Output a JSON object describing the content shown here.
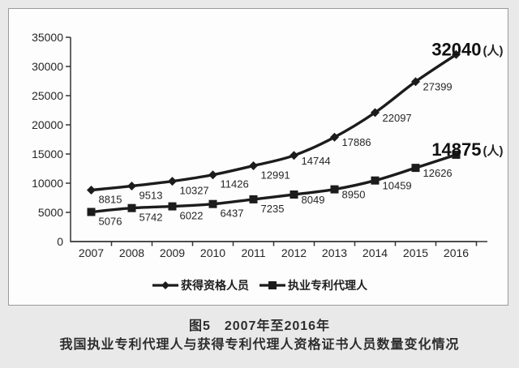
{
  "figure": {
    "caption_line1": "图5　2007年至2016年",
    "caption_line2": "我国执业专利代理人与获得专利代理人资格证书人员数量变化情况"
  },
  "chart_data": {
    "type": "line",
    "title": "",
    "xlabel": "",
    "ylabel": "",
    "x": [
      "2007",
      "2008",
      "2009",
      "2010",
      "2011",
      "2012",
      "2013",
      "2014",
      "2015",
      "2016"
    ],
    "ylim": [
      0,
      35000
    ],
    "yticks": [
      0,
      5000,
      10000,
      15000,
      20000,
      25000,
      30000,
      35000
    ],
    "grid": false,
    "legend_position": "bottom-inside",
    "unit": "人",
    "series": [
      {
        "name": "获得资格人员",
        "marker": "diamond",
        "values": [
          8815,
          9513,
          10327,
          11426,
          12991,
          14744,
          17886,
          22097,
          27399,
          32040
        ],
        "end_label": "32040",
        "end_label_suffix": "(人)"
      },
      {
        "name": "执业专利代理人",
        "marker": "square",
        "values": [
          5076,
          5742,
          6022,
          6437,
          7235,
          8049,
          8950,
          10459,
          12626,
          14875
        ],
        "end_label": "14875",
        "end_label_suffix": "(人)"
      }
    ]
  },
  "colors": {
    "page_bg": "#e9e9e9",
    "panel_bg": "#fdfdfd",
    "panel_border": "#9a9a9a",
    "ink": "#1c1c1c",
    "label_ink": "#262626"
  }
}
